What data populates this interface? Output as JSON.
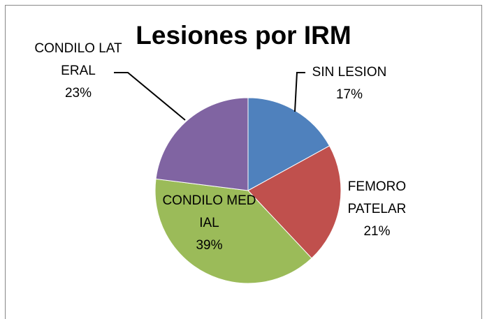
{
  "chart_data": {
    "type": "pie",
    "title": "Lesiones por IRM",
    "categories": [
      "SIN LESION",
      "FEMOROPATELAR",
      "CONDILO MEDIAL",
      "CONDILO LATERAL"
    ],
    "values": [
      17,
      21,
      39,
      23
    ],
    "value_labels": [
      "17%",
      "21%",
      "39%",
      "23%"
    ],
    "colors": [
      "#4f81bd",
      "#c0504d",
      "#9bbb59",
      "#8064a2"
    ]
  }
}
